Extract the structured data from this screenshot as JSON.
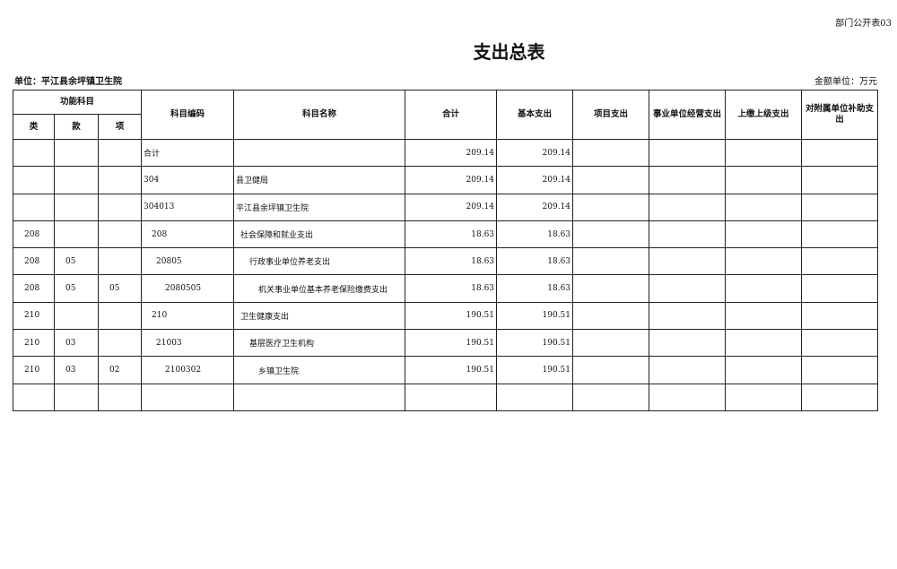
{
  "form_no": "部门公开表03",
  "title": "支出总表",
  "unit": "单位：平江县余坪镇卫生院",
  "money_unit": "金额单位：万元",
  "headers": {
    "func": "功能科目",
    "lei": "类",
    "kuan": "款",
    "xiang": "项",
    "code": "科目编码",
    "name": "科目名称",
    "total": "合计",
    "basic": "基本支出",
    "project": "项目支出",
    "biz": "事业单位经营支出",
    "upper": "上缴上级支出",
    "sub": "对附属单位补助支出"
  },
  "rows": [
    {
      "lei": "",
      "kuan": "",
      "xiang": "",
      "code": "合计",
      "name": "",
      "total": "209.14",
      "basic": "209.14",
      "level": 0
    },
    {
      "lei": "",
      "kuan": "",
      "xiang": "",
      "code": "304",
      "name": "县卫健局",
      "total": "209.14",
      "basic": "209.14",
      "level": 0
    },
    {
      "lei": "",
      "kuan": "",
      "xiang": "",
      "code": "304013",
      "name": "平江县余坪镇卫生院",
      "total": "209.14",
      "basic": "209.14",
      "level": 1
    },
    {
      "lei": "208",
      "kuan": "",
      "xiang": "",
      "code": "208",
      "name": "社会保障和就业支出",
      "total": "18.63",
      "basic": "18.63",
      "level": 2
    },
    {
      "lei": "208",
      "kuan": "05",
      "xiang": "",
      "code": "20805",
      "name": "行政事业单位养老支出",
      "total": "18.63",
      "basic": "18.63",
      "level": 3
    },
    {
      "lei": "208",
      "kuan": "05",
      "xiang": "05",
      "code": "2080505",
      "name": "机关事业单位基本养老保险缴费支出",
      "total": "18.63",
      "basic": "18.63",
      "level": 4
    },
    {
      "lei": "210",
      "kuan": "",
      "xiang": "",
      "code": "210",
      "name": "卫生健康支出",
      "total": "190.51",
      "basic": "190.51",
      "level": 2
    },
    {
      "lei": "210",
      "kuan": "03",
      "xiang": "",
      "code": "21003",
      "name": "基层医疗卫生机构",
      "total": "190.51",
      "basic": "190.51",
      "level": 3
    },
    {
      "lei": "210",
      "kuan": "03",
      "xiang": "02",
      "code": "2100302",
      "name": "乡镇卫生院",
      "total": "190.51",
      "basic": "190.51",
      "level": 4
    },
    {
      "lei": "",
      "kuan": "",
      "xiang": "",
      "code": "",
      "name": "",
      "total": "",
      "basic": "",
      "level": 0
    }
  ]
}
